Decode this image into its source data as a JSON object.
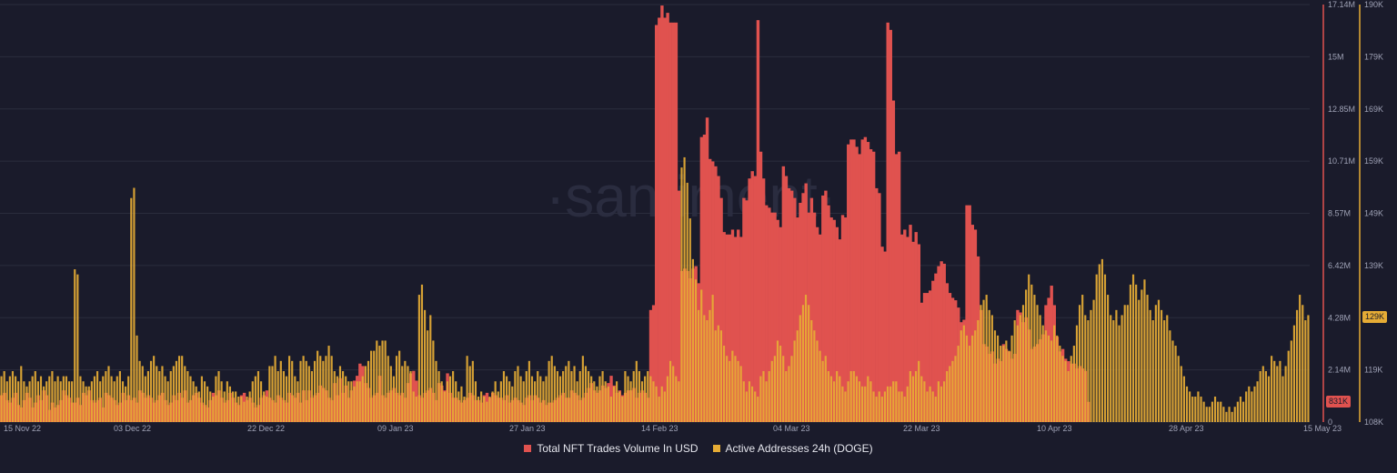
{
  "watermark": "·santiment·",
  "colors": {
    "background": "#1a1b2b",
    "nft_volume": "#e0524f",
    "active_addresses": "#e6ac35",
    "grid": "#2a2c3d",
    "tick": "#9ea1b5"
  },
  "legend": {
    "nft_volume": "Total NFT Trades Volume In USD",
    "active_addresses": "Active Addresses 24h (DOGE)"
  },
  "badges": {
    "nft_volume": "831K",
    "active_addresses": "129K"
  },
  "chart_data": {
    "type": "bar",
    "x_start": "2022-11-15",
    "x_end": "2023-05-15",
    "x_ticks": [
      "15 Nov 22",
      "03 Dec 22",
      "22 Dec 22",
      "09 Jan 23",
      "27 Jan 23",
      "14 Feb 23",
      "04 Mar 23",
      "22 Mar 23",
      "10 Apr 23",
      "28 Apr 23",
      "15 May 23"
    ],
    "y_left": {
      "ticks": [
        "17.14M",
        "15M",
        "12.85M",
        "10.71M",
        "8.57M",
        "6.42M",
        "4.28M",
        "2.14M",
        "0"
      ],
      "range": [
        0,
        17140000
      ]
    },
    "y_right": {
      "ticks": [
        "190K",
        "179K",
        "169K",
        "159K",
        "149K",
        "139K",
        "129K",
        "119K",
        "108K"
      ],
      "range": [
        108000,
        190000
      ]
    },
    "grid": true,
    "legend_position": "bottom",
    "series": [
      {
        "name": "Total NFT Trades Volume In USD",
        "axis": "left",
        "color": "#e0524f",
        "values": [
          1.1,
          1.2,
          0.9,
          0.8,
          1.0,
          1.2,
          0.7,
          0.6,
          0.9,
          1.2,
          1.0,
          0.6,
          0.8,
          1.1,
          0.9,
          1.3,
          1.1,
          0.5,
          0.8,
          0.6,
          0.7,
          0.9,
          1.3,
          1.1,
          1.0,
          0.8,
          0.8,
          1.0,
          0.7,
          1.2,
          1.1,
          1.3,
          0.9,
          0.8,
          0.9,
          1.0,
          0.6,
          1.2,
          1.1,
          1.0,
          0.9,
          0.7,
          0.8,
          1.2,
          0.9,
          1.1,
          0.9,
          1.0,
          0.8,
          1.3,
          1.2,
          1.0,
          1.1,
          1.0,
          0.8,
          0.9,
          1.1,
          1.2,
          0.9,
          0.7,
          0.8,
          1.1,
          0.9,
          1.2,
          1.0,
          1.3,
          0.8,
          0.9,
          1.1,
          1.2,
          1.0,
          0.8,
          0.7,
          0.6,
          0.9,
          1.2,
          1.1,
          1.3,
          1.0,
          0.8,
          0.9,
          1.2,
          1.0,
          0.8,
          0.7,
          1.1,
          1.2,
          0.9,
          1.0,
          0.8,
          0.6,
          0.7,
          1.0,
          1.1,
          1.3,
          1.0,
          0.9,
          0.8,
          1.1,
          1.0,
          0.9,
          0.8,
          1.2,
          1.1,
          1.0,
          1.2,
          0.8,
          1.3,
          0.9,
          1.3,
          1.0,
          1.1,
          1.2,
          1.5,
          1.4,
          1.3,
          1.0,
          0.9,
          1.6,
          1.1,
          1.8,
          1.2,
          1.5,
          1.0,
          1.3,
          1.7,
          1.9,
          2.4,
          2.3,
          1.6,
          1.4,
          1.0,
          1.1,
          1.2,
          1.9,
          1.1,
          1.0,
          1.2,
          1.3,
          1.4,
          1.2,
          1.1,
          1.2,
          1.0,
          1.6,
          2.0,
          2.1,
          1.7,
          1.1,
          1.0,
          1.2,
          1.3,
          1.4,
          1.2,
          0.9,
          1.6,
          1.5,
          1.3,
          2.0,
          1.2,
          1.0,
          1.0,
          0.9,
          0.8,
          0.9,
          1.0,
          1.2,
          1.1,
          0.9,
          0.9,
          0.8,
          1.1,
          1.2,
          1.0,
          1.2,
          1.1,
          1.0,
          1.0,
          0.9,
          1.1,
          0.8,
          0.9,
          1.0,
          0.9,
          0.8,
          0.7,
          1.0,
          1.1,
          0.9,
          1.1,
          1.0,
          0.8,
          0.9,
          0.7,
          0.8,
          0.8,
          0.9,
          1.0,
          1.1,
          1.2,
          1.0,
          1.0,
          1.3,
          1.2,
          1.1,
          0.9,
          1.0,
          1.2,
          1.4,
          1.6,
          1.3,
          1.2,
          1.3,
          1.5,
          1.4,
          1.6,
          1.9,
          1.5,
          1.2,
          1.3,
          1.1,
          1.2,
          1.3,
          1.3,
          1.4,
          1.0,
          1.2,
          1.3,
          1.2,
          1.0,
          4.6,
          4.8,
          16.3,
          16.6,
          17.1,
          16.6,
          16.8,
          16.4,
          16.4,
          16.4,
          9.5,
          6.2,
          6.3,
          6.2,
          5.9,
          6.3,
          6.4,
          5.7,
          11.7,
          11.8,
          12.5,
          10.8,
          10.7,
          10.5,
          10.1,
          9.2,
          7.8,
          7.7,
          7.7,
          7.9,
          7.6,
          7.9,
          7.6,
          9.2,
          9.1,
          10.0,
          10.3,
          10.1,
          16.5,
          11.1,
          10.0,
          8.9,
          8.8,
          8.6,
          8.6,
          8.3,
          8.0,
          10.5,
          10.1,
          9.6,
          9.5,
          9.2,
          8.4,
          9.0,
          9.4,
          9.8,
          8.6,
          9.2,
          8.6,
          8.0,
          7.7,
          9.3,
          9.5,
          8.9,
          8.4,
          8.3,
          8.0,
          7.5,
          8.5,
          8.4,
          11.4,
          11.6,
          11.6,
          11.3,
          11.0,
          11.6,
          11.7,
          11.5,
          11.2,
          11.1,
          9.6,
          9.4,
          7.2,
          7.0,
          16.4,
          16.1,
          13.2,
          11.0,
          11.1,
          7.7,
          7.9,
          7.6,
          8.1,
          7.4,
          7.8,
          7.3,
          4.9,
          5.3,
          5.3,
          5.4,
          5.8,
          6.1,
          6.4,
          6.6,
          6.5,
          5.7,
          5.3,
          5.1,
          5.0,
          4.7,
          4.1,
          4.2,
          8.9,
          8.9,
          8.1,
          7.9,
          6.8,
          4.6,
          3.2,
          3.1,
          2.8,
          2.9,
          2.4,
          2.6,
          2.5,
          3.2,
          3.0,
          2.9,
          2.6,
          2.8,
          4.6,
          4.5,
          4.1,
          4.3,
          3.8,
          3.0,
          3.1,
          3.2,
          3.4,
          3.6,
          4.8,
          5.1,
          5.6,
          4.8,
          3.5,
          2.9,
          3.0,
          2.6,
          2.5,
          2.4,
          2.4,
          2.2,
          2.3,
          2.2,
          2.1,
          0.83
        ]
      },
      {
        "name": "Active Addresses 24h (DOGE)",
        "axis": "right",
        "color": "#e6ac35",
        "values": [
          117,
          118,
          116,
          117,
          118,
          117,
          116,
          119,
          116,
          115,
          116,
          117,
          118,
          116,
          117,
          115,
          116,
          117,
          118,
          116,
          117,
          116,
          117,
          117,
          116,
          116,
          138,
          137,
          117,
          116,
          115,
          115,
          116,
          117,
          118,
          116,
          117,
          118,
          119,
          117,
          116,
          117,
          118,
          116,
          115,
          117,
          152,
          154,
          125,
          120,
          119,
          117,
          118,
          120,
          121,
          119,
          118,
          119,
          117,
          116,
          118,
          119,
          120,
          121,
          121,
          119,
          118,
          117,
          116,
          115,
          114,
          117,
          116,
          115,
          114,
          113,
          117,
          118,
          116,
          114,
          116,
          115,
          114,
          114,
          113,
          113,
          112,
          113,
          114,
          116,
          117,
          118,
          116,
          114,
          113,
          119,
          119,
          121,
          118,
          120,
          118,
          117,
          121,
          120,
          117,
          116,
          120,
          121,
          120,
          119,
          118,
          120,
          122,
          121,
          120,
          121,
          123,
          121,
          118,
          117,
          119,
          118,
          117,
          116,
          116,
          115,
          116,
          116,
          117,
          119,
          120,
          122,
          122,
          124,
          123,
          124,
          124,
          121,
          119,
          117,
          121,
          122,
          119,
          120,
          119,
          118,
          114,
          113,
          133,
          135,
          130,
          126,
          129,
          124,
          120,
          118,
          116,
          114,
          116,
          117,
          118,
          116,
          114,
          115,
          113,
          121,
          119,
          120,
          116,
          113,
          114,
          113,
          112,
          113,
          114,
          116,
          114,
          116,
          118,
          117,
          116,
          115,
          118,
          119,
          117,
          116,
          118,
          120,
          117,
          116,
          118,
          117,
          116,
          117,
          120,
          121,
          119,
          118,
          117,
          118,
          119,
          120,
          118,
          119,
          116,
          118,
          121,
          119,
          118,
          117,
          116,
          115,
          117,
          118,
          116,
          115,
          113,
          115,
          116,
          114,
          113,
          118,
          117,
          116,
          118,
          120,
          118,
          116,
          117,
          118,
          117,
          116,
          115,
          113,
          115,
          114,
          117,
          120,
          119,
          117,
          116,
          158,
          160,
          155,
          148,
          140,
          136,
          130,
          134,
          129,
          128,
          130,
          133,
          126,
          127,
          126,
          123,
          121,
          120,
          122,
          121,
          120,
          119,
          116,
          114,
          116,
          115,
          114,
          113,
          117,
          118,
          116,
          118,
          120,
          121,
          124,
          123,
          121,
          118,
          119,
          121,
          124,
          126,
          129,
          131,
          133,
          131,
          128,
          126,
          124,
          122,
          120,
          121,
          118,
          117,
          116,
          118,
          117,
          115,
          114,
          116,
          118,
          118,
          117,
          116,
          115,
          115,
          117,
          116,
          114,
          113,
          114,
          113,
          114,
          115,
          115,
          116,
          116,
          114,
          114,
          113,
          115,
          118,
          117,
          118,
          120,
          117,
          116,
          114,
          115,
          114,
          113,
          116,
          115,
          116,
          118,
          119,
          120,
          121,
          123,
          126,
          127,
          125,
          123,
          125,
          126,
          128,
          131,
          132,
          133,
          130,
          129,
          126,
          125,
          123,
          123,
          124,
          122,
          125,
          128,
          127,
          129,
          131,
          134,
          137,
          135,
          133,
          131,
          129,
          127,
          126,
          125,
          124,
          127,
          125,
          123,
          121,
          120,
          118,
          121,
          123,
          127,
          131,
          133,
          129,
          128,
          130,
          132,
          137,
          139,
          140,
          137,
          133,
          129,
          128,
          130,
          127,
          129,
          131,
          131,
          135,
          137,
          135,
          132,
          134,
          136,
          133,
          130,
          128,
          131,
          132,
          130,
          128,
          129,
          126,
          124,
          123,
          121,
          119,
          117,
          115,
          114,
          113,
          113,
          114,
          113,
          112,
          111,
          111,
          112,
          113,
          112,
          112,
          111,
          110,
          111,
          110,
          111,
          112,
          113,
          112,
          114,
          115,
          114,
          115,
          116,
          118,
          119,
          118,
          117,
          121,
          120,
          119,
          120,
          117,
          119,
          122,
          124,
          127,
          130,
          133,
          131,
          128,
          129
        ]
      }
    ]
  }
}
